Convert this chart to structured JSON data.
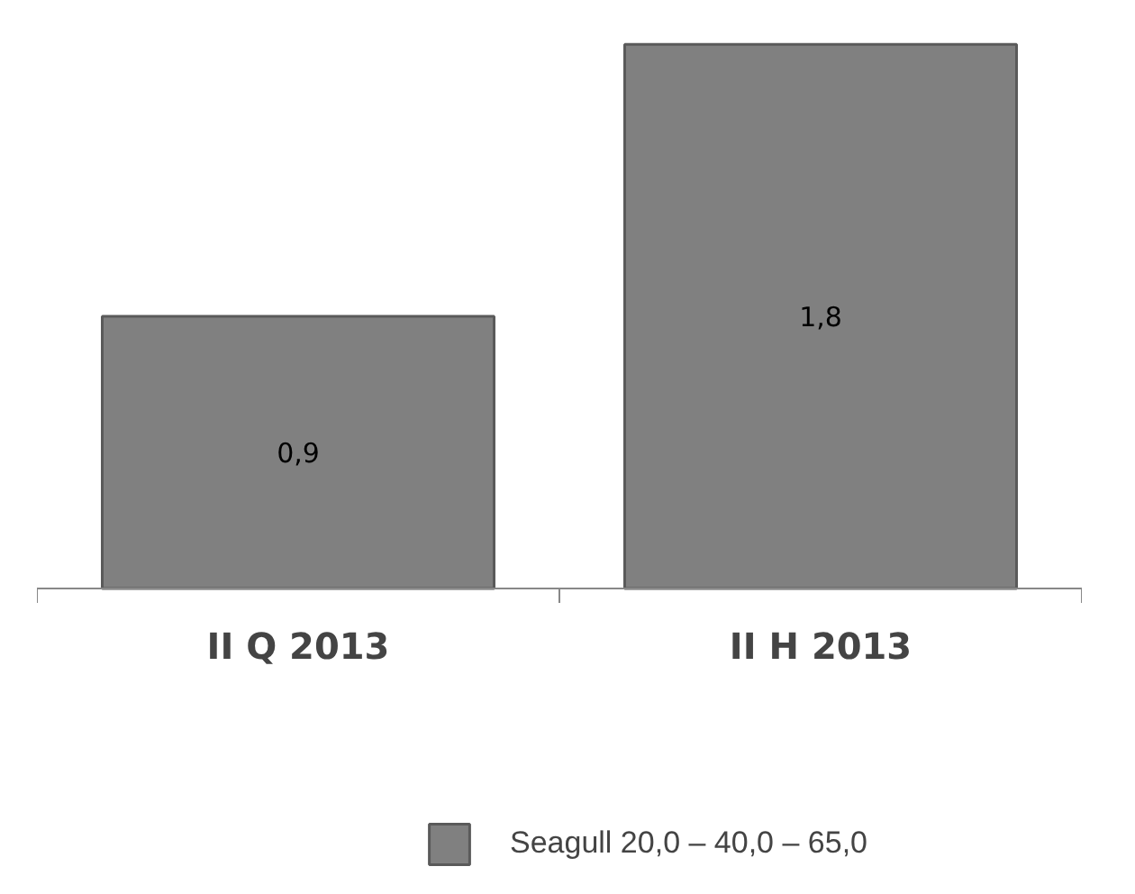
{
  "chart_data": {
    "type": "bar",
    "categories": [
      "II Q 2013",
      "II H 2013"
    ],
    "series": [
      {
        "name": "Seagull 20,0 – 40,0 – 65,0",
        "color": "#808080",
        "values": [
          0.9,
          1.8
        ],
        "value_labels": [
          "0,9",
          "1,8"
        ]
      }
    ],
    "legend": "bottom"
  }
}
